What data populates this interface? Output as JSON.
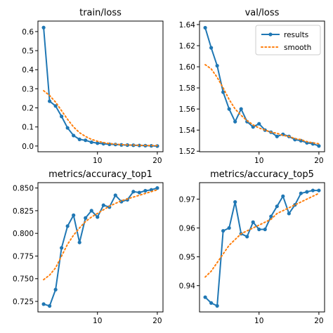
{
  "colors": {
    "results": "#1f77b4",
    "smooth": "#ff7f0e",
    "frame": "#000000",
    "background": "#ffffff"
  },
  "legend": {
    "location": "top-right",
    "panel_index": 1,
    "entries": [
      "results",
      "smooth"
    ]
  },
  "chart_data": [
    {
      "type": "line",
      "title": "train/loss",
      "xlabel": "",
      "ylabel": "",
      "xlim": [
        0.05,
        20.95
      ],
      "ylim": [
        -0.03,
        0.655
      ],
      "xticks": [
        10,
        20
      ],
      "yticks": [
        0.0,
        0.1,
        0.2,
        0.3,
        0.4,
        0.5,
        0.6
      ],
      "ytick_labels": [
        "0.0",
        "0.1",
        "0.2",
        "0.3",
        "0.4",
        "0.5",
        "0.6"
      ],
      "grid": false,
      "x": [
        1,
        2,
        3,
        4,
        5,
        6,
        7,
        8,
        9,
        10,
        11,
        12,
        13,
        14,
        15,
        16,
        17,
        18,
        19,
        20
      ],
      "series": [
        {
          "name": "results",
          "style": "line-markers",
          "values": [
            0.621,
            0.235,
            0.21,
            0.155,
            0.095,
            0.055,
            0.035,
            0.03,
            0.02,
            0.015,
            0.012,
            0.009,
            0.008,
            0.006,
            0.005,
            0.004,
            0.003,
            0.002,
            0.001,
            0.0
          ]
        },
        {
          "name": "smooth",
          "style": "dotted",
          "values": [
            0.29,
            0.265,
            0.23,
            0.185,
            0.14,
            0.1,
            0.07,
            0.05,
            0.035,
            0.025,
            0.018,
            0.013,
            0.01,
            0.007,
            0.006,
            0.005,
            0.004,
            0.003,
            0.002,
            0.002
          ]
        }
      ]
    },
    {
      "type": "line",
      "title": "val/loss",
      "xlabel": "",
      "ylabel": "",
      "xlim": [
        0.05,
        20.95
      ],
      "ylim": [
        1.5195,
        1.6433
      ],
      "xticks": [
        10,
        20
      ],
      "yticks": [
        1.52,
        1.54,
        1.56,
        1.58,
        1.6,
        1.62,
        1.64
      ],
      "ytick_labels": [
        "1.52",
        "1.54",
        "1.56",
        "1.58",
        "1.60",
        "1.62",
        "1.64"
      ],
      "grid": false,
      "x": [
        1,
        2,
        3,
        4,
        5,
        6,
        7,
        8,
        9,
        10,
        11,
        12,
        13,
        14,
        15,
        16,
        17,
        18,
        19,
        20
      ],
      "series": [
        {
          "name": "results",
          "style": "line-markers",
          "values": [
            1.637,
            1.618,
            1.601,
            1.576,
            1.56,
            1.548,
            1.56,
            1.548,
            1.543,
            1.546,
            1.54,
            1.538,
            1.534,
            1.536,
            1.534,
            1.531,
            1.53,
            1.528,
            1.527,
            1.525
          ]
        },
        {
          "name": "smooth",
          "style": "dotted",
          "values": [
            1.602,
            1.598,
            1.59,
            1.58,
            1.569,
            1.56,
            1.554,
            1.549,
            1.545,
            1.542,
            1.54,
            1.538,
            1.537,
            1.535,
            1.534,
            1.532,
            1.531,
            1.529,
            1.528,
            1.527
          ]
        }
      ]
    },
    {
      "type": "line",
      "title": "metrics/accuracy_top1",
      "xlabel": "",
      "ylabel": "",
      "xlim": [
        0.05,
        20.95
      ],
      "ylim": [
        0.7134,
        0.8559
      ],
      "xticks": [
        10,
        20
      ],
      "yticks": [
        0.725,
        0.75,
        0.775,
        0.8,
        0.825,
        0.85
      ],
      "ytick_labels": [
        "0.725",
        "0.750",
        "0.775",
        "0.800",
        "0.825",
        "0.850"
      ],
      "grid": false,
      "x": [
        1,
        2,
        3,
        4,
        5,
        6,
        7,
        8,
        9,
        10,
        11,
        12,
        13,
        14,
        15,
        16,
        17,
        18,
        19,
        20
      ],
      "series": [
        {
          "name": "results",
          "style": "line-markers",
          "values": [
            0.722,
            0.72,
            0.738,
            0.784,
            0.808,
            0.82,
            0.79,
            0.817,
            0.825,
            0.818,
            0.831,
            0.829,
            0.842,
            0.835,
            0.837,
            0.846,
            0.845,
            0.847,
            0.848,
            0.85
          ]
        },
        {
          "name": "smooth",
          "style": "dotted",
          "values": [
            0.749,
            0.754,
            0.762,
            0.775,
            0.788,
            0.798,
            0.806,
            0.813,
            0.818,
            0.822,
            0.826,
            0.83,
            0.833,
            0.836,
            0.838,
            0.84,
            0.842,
            0.844,
            0.846,
            0.848
          ]
        }
      ]
    },
    {
      "type": "line",
      "title": "metrics/accuracy_top5",
      "xlabel": "",
      "ylabel": "",
      "xlim": [
        0.05,
        20.95
      ],
      "ylim": [
        0.9309,
        0.9757
      ],
      "xticks": [
        10,
        20
      ],
      "yticks": [
        0.94,
        0.95,
        0.96,
        0.97
      ],
      "ytick_labels": [
        "0.94",
        "0.95",
        "0.96",
        "0.97"
      ],
      "grid": false,
      "x": [
        1,
        2,
        3,
        4,
        5,
        6,
        7,
        8,
        9,
        10,
        11,
        12,
        13,
        14,
        15,
        16,
        17,
        18,
        19,
        20
      ],
      "series": [
        {
          "name": "results",
          "style": "line-markers",
          "values": [
            0.936,
            0.934,
            0.933,
            0.959,
            0.96,
            0.969,
            0.958,
            0.957,
            0.962,
            0.9595,
            0.9595,
            0.964,
            0.9675,
            0.971,
            0.965,
            0.968,
            0.972,
            0.9725,
            0.973,
            0.973
          ]
        },
        {
          "name": "smooth",
          "style": "dotted",
          "values": [
            0.943,
            0.945,
            0.948,
            0.951,
            0.954,
            0.956,
            0.958,
            0.959,
            0.96,
            0.961,
            0.962,
            0.963,
            0.965,
            0.966,
            0.967,
            0.968,
            0.969,
            0.97,
            0.971,
            0.972
          ]
        }
      ]
    }
  ]
}
